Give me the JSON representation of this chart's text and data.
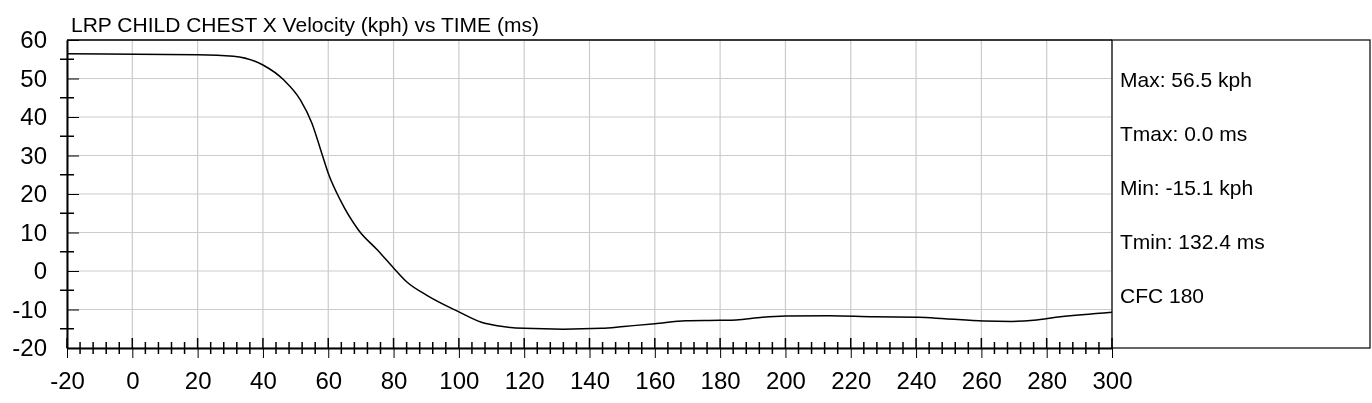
{
  "chart_data": {
    "type": "line",
    "title": "LRP CHILD CHEST X Velocity (kph) vs TIME (ms)",
    "x": [
      -20,
      20,
      31,
      40,
      46.4,
      51.5,
      55,
      58,
      60,
      63.7,
      69.3,
      75,
      80,
      84,
      90.6,
      100,
      106.9,
      112.4,
      119.9,
      132,
      143.7,
      150.5,
      160,
      169.5,
      180,
      184.9,
      193,
      200,
      213.5,
      227,
      240.7,
      248.8,
      260.7,
      269.3,
      276,
      284.2,
      300
    ],
    "series": [
      {
        "color": "#000000",
        "values": [
          56.4,
          56.2,
          55.8,
          53.5,
          49.6,
          44.4,
          38.4,
          30.6,
          25.4,
          18.4,
          10.6,
          5.5,
          0.8,
          -2.8,
          -6.5,
          -10.6,
          -13.3,
          -14.3,
          -14.9,
          -15.1,
          -14.9,
          -14.4,
          -13.7,
          -12.9,
          -12.8,
          -12.7,
          -12.0,
          -11.7,
          -11.6,
          -11.9,
          -12.0,
          -12.4,
          -13.0,
          -13.1,
          -12.8,
          -11.9,
          -10.7
        ]
      }
    ],
    "xlim": [
      -20,
      300
    ],
    "xticks": [
      -20,
      0,
      20,
      40,
      60,
      80,
      100,
      120,
      140,
      160,
      180,
      200,
      220,
      240,
      260,
      280,
      300
    ],
    "ylim": [
      -20,
      60
    ],
    "yticks": [
      -20,
      -10,
      0,
      10,
      20,
      30,
      40,
      50,
      60
    ],
    "grid": true,
    "marker": "none",
    "line_style": "solid",
    "annotations": [
      "Max: 56.5 kph",
      "Tmax: 0.0 ms",
      "Min: -15.1 kph",
      "Tmin: 132.4 ms",
      "CFC 180"
    ]
  }
}
